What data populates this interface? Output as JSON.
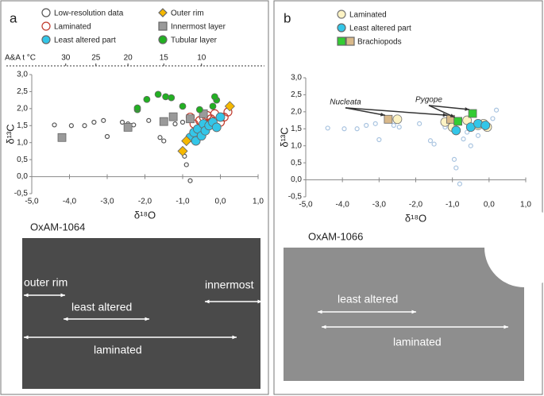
{
  "chart_data": [
    {
      "type": "scatter",
      "panel": "a",
      "sample": "OxAM-1064",
      "x_label": "δ¹⁸O",
      "y_label": "δ¹³C",
      "legend": "top",
      "xlim": [
        -5,
        1
      ],
      "ylim": [
        -0.5,
        3
      ],
      "xticks": [
        {
          "value": -5,
          "label": "-5,0"
        },
        {
          "value": -4,
          "label": "-4,0"
        },
        {
          "value": -3,
          "label": "-3,0"
        },
        {
          "value": -2,
          "label": "-2,0"
        },
        {
          "value": -1,
          "label": "-1,0"
        },
        {
          "value": 0,
          "label": "0,0"
        },
        {
          "value": 1,
          "label": "1,0"
        }
      ],
      "yticks": [
        {
          "value": -0.5,
          "label": "-0,5"
        },
        {
          "value": 0,
          "label": "0,0"
        },
        {
          "value": 0.5,
          "label": "0,5"
        },
        {
          "value": 1,
          "label": "1,0"
        },
        {
          "value": 1.5,
          "label": "1,5"
        },
        {
          "value": 2,
          "label": "2,0"
        },
        {
          "value": 2.5,
          "label": "2,5"
        },
        {
          "value": 3,
          "label": "3,0"
        }
      ],
      "x2_label": "A&A t °C",
      "x2ticks": [
        {
          "value": -4.1,
          "label": "30"
        },
        {
          "value": -3.3,
          "label": "25"
        },
        {
          "value": -2.45,
          "label": "20"
        },
        {
          "value": -1.5,
          "label": "15"
        },
        {
          "value": -0.5,
          "label": "10"
        }
      ],
      "series": [
        {
          "name": "Low-resolution data",
          "color": "#555555",
          "marker": "circle",
          "filled": false,
          "size": 2.5,
          "x": [
            -4.4,
            -3.95,
            -3.6,
            -3.35,
            -3.1,
            -3.0,
            -2.6,
            -2.45,
            -2.3,
            -1.9,
            -1.6,
            -1.5,
            -1.2,
            -1.0,
            -0.95,
            -0.9,
            -0.8,
            -0.7,
            -0.6,
            -0.5
          ],
          "y": [
            1.52,
            1.5,
            1.5,
            1.6,
            1.65,
            1.18,
            1.6,
            1.55,
            1.52,
            1.65,
            1.15,
            1.05,
            1.55,
            1.6,
            0.6,
            0.35,
            -0.12,
            1.2,
            1.4,
            1.5
          ]
        },
        {
          "name": "Laminated",
          "color": "#c0392b",
          "marker": "circle",
          "filled": false,
          "size": 5,
          "x": [
            -0.8,
            -0.7,
            -0.55,
            -0.45,
            -0.35,
            -0.3,
            -0.25,
            -0.15,
            0.0,
            0.1,
            0.2
          ],
          "y": [
            1.75,
            1.55,
            1.65,
            1.75,
            1.8,
            1.55,
            1.7,
            1.85,
            1.6,
            1.75,
            1.9
          ]
        },
        {
          "name": "Least altered part",
          "color": "#33c6e8",
          "marker": "circle",
          "filled": true,
          "size": 5.5,
          "x": [
            -0.8,
            -0.7,
            -0.65,
            -0.6,
            -0.5,
            -0.45,
            -0.4,
            -0.3,
            -0.2,
            -0.1,
            0.0
          ],
          "y": [
            1.15,
            1.3,
            1.05,
            1.4,
            1.2,
            1.55,
            1.35,
            1.5,
            1.6,
            1.45,
            1.75
          ]
        },
        {
          "name": "Outer rim",
          "color": "#f5b800",
          "marker": "diamond",
          "filled": true,
          "size": 6,
          "x": [
            -1.0,
            -0.9,
            0.25
          ],
          "y": [
            0.75,
            1.05,
            2.07
          ]
        },
        {
          "name": "Innermost layer",
          "color": "#9a9a9a",
          "marker": "square",
          "filled": true,
          "size": 5,
          "x": [
            -4.2,
            -2.45,
            -1.5,
            -1.25,
            -0.8,
            -0.45
          ],
          "y": [
            1.15,
            1.45,
            1.62,
            1.76,
            1.7,
            1.85
          ]
        },
        {
          "name": "Tubular layer",
          "color": "#22b022",
          "marker": "circle",
          "filled": true,
          "size": 4,
          "x": [
            -2.2,
            -2.2,
            -1.95,
            -1.65,
            -1.45,
            -1.3,
            -1.0,
            -0.55,
            -0.2,
            -0.1,
            -0.15
          ],
          "y": [
            1.97,
            2.02,
            2.27,
            2.42,
            2.35,
            2.32,
            2.07,
            1.97,
            2.07,
            2.25,
            2.35
          ]
        }
      ],
      "photo_labels": [
        "outer rim",
        "least altered",
        "innermost",
        "laminated"
      ]
    },
    {
      "type": "scatter",
      "panel": "b",
      "sample": "OxAM-1066",
      "x_label": "δ¹⁸O",
      "y_label": "δ¹³C",
      "legend": "top",
      "xlim": [
        -5,
        1
      ],
      "ylim": [
        -0.5,
        3
      ],
      "xticks": [
        {
          "value": -5,
          "label": "-5,0"
        },
        {
          "value": -4,
          "label": "-4,0"
        },
        {
          "value": -3,
          "label": "-3,0"
        },
        {
          "value": -2,
          "label": "-2,0"
        },
        {
          "value": -1,
          "label": "-1,0"
        },
        {
          "value": 0,
          "label": "0,0"
        },
        {
          "value": 1,
          "label": "1,0"
        }
      ],
      "yticks": [
        {
          "value": -0.5,
          "label": "-0,5"
        },
        {
          "value": 0,
          "label": "0,0"
        },
        {
          "value": 0.5,
          "label": "0,5"
        },
        {
          "value": 1,
          "label": "1,0"
        },
        {
          "value": 1.5,
          "label": "1,5"
        },
        {
          "value": 2,
          "label": "2,0"
        },
        {
          "value": 2.5,
          "label": "2,5"
        },
        {
          "value": 3,
          "label": "3,0"
        }
      ],
      "series": [
        {
          "color": "#a9c4e0",
          "marker": "circle",
          "filled": false,
          "size": 2.5,
          "x": [
            -4.4,
            -3.95,
            -3.6,
            -3.35,
            -3.1,
            -3.0,
            -2.6,
            -2.45,
            -1.9,
            -1.6,
            -1.5,
            -1.2,
            -0.95,
            -0.9,
            -0.8,
            -0.7,
            -0.6,
            -0.5,
            -0.3,
            0.1,
            0.2
          ],
          "y": [
            1.52,
            1.5,
            1.5,
            1.6,
            1.65,
            1.18,
            1.6,
            1.55,
            1.65,
            1.15,
            1.05,
            1.55,
            0.6,
            0.35,
            -0.12,
            1.2,
            1.4,
            1.0,
            1.3,
            1.8,
            2.05
          ]
        },
        {
          "name": "Laminated",
          "color": "#777777",
          "fill": "#fdf3c4",
          "marker": "circle",
          "filled": true,
          "size": 5.5,
          "x": [
            -2.5,
            -1.2,
            -1.0,
            -0.6,
            -0.3,
            -0.15,
            -0.05
          ],
          "y": [
            1.78,
            1.7,
            1.55,
            1.75,
            1.6,
            1.65,
            1.55
          ]
        },
        {
          "name": "Least altered part",
          "color": "#33c6e8",
          "marker": "circle",
          "filled": true,
          "size": 5.5,
          "x": [
            -0.9,
            -0.5,
            -0.3,
            -0.1
          ],
          "y": [
            1.45,
            1.55,
            1.65,
            1.6
          ]
        },
        {
          "name": "Brachiopods",
          "colors": [
            "#d9b98a",
            "#d9b98a",
            "#33cc33",
            "#33cc33"
          ],
          "marker": "square",
          "filled": true,
          "size": 5,
          "x": [
            -2.75,
            -1.05,
            -0.85,
            -0.45
          ],
          "y": [
            1.78,
            1.78,
            1.72,
            1.95
          ]
        }
      ],
      "annotations": [
        "Nucleata",
        "Pygope"
      ],
      "photo_labels": [
        "least altered",
        "laminated"
      ]
    }
  ]
}
